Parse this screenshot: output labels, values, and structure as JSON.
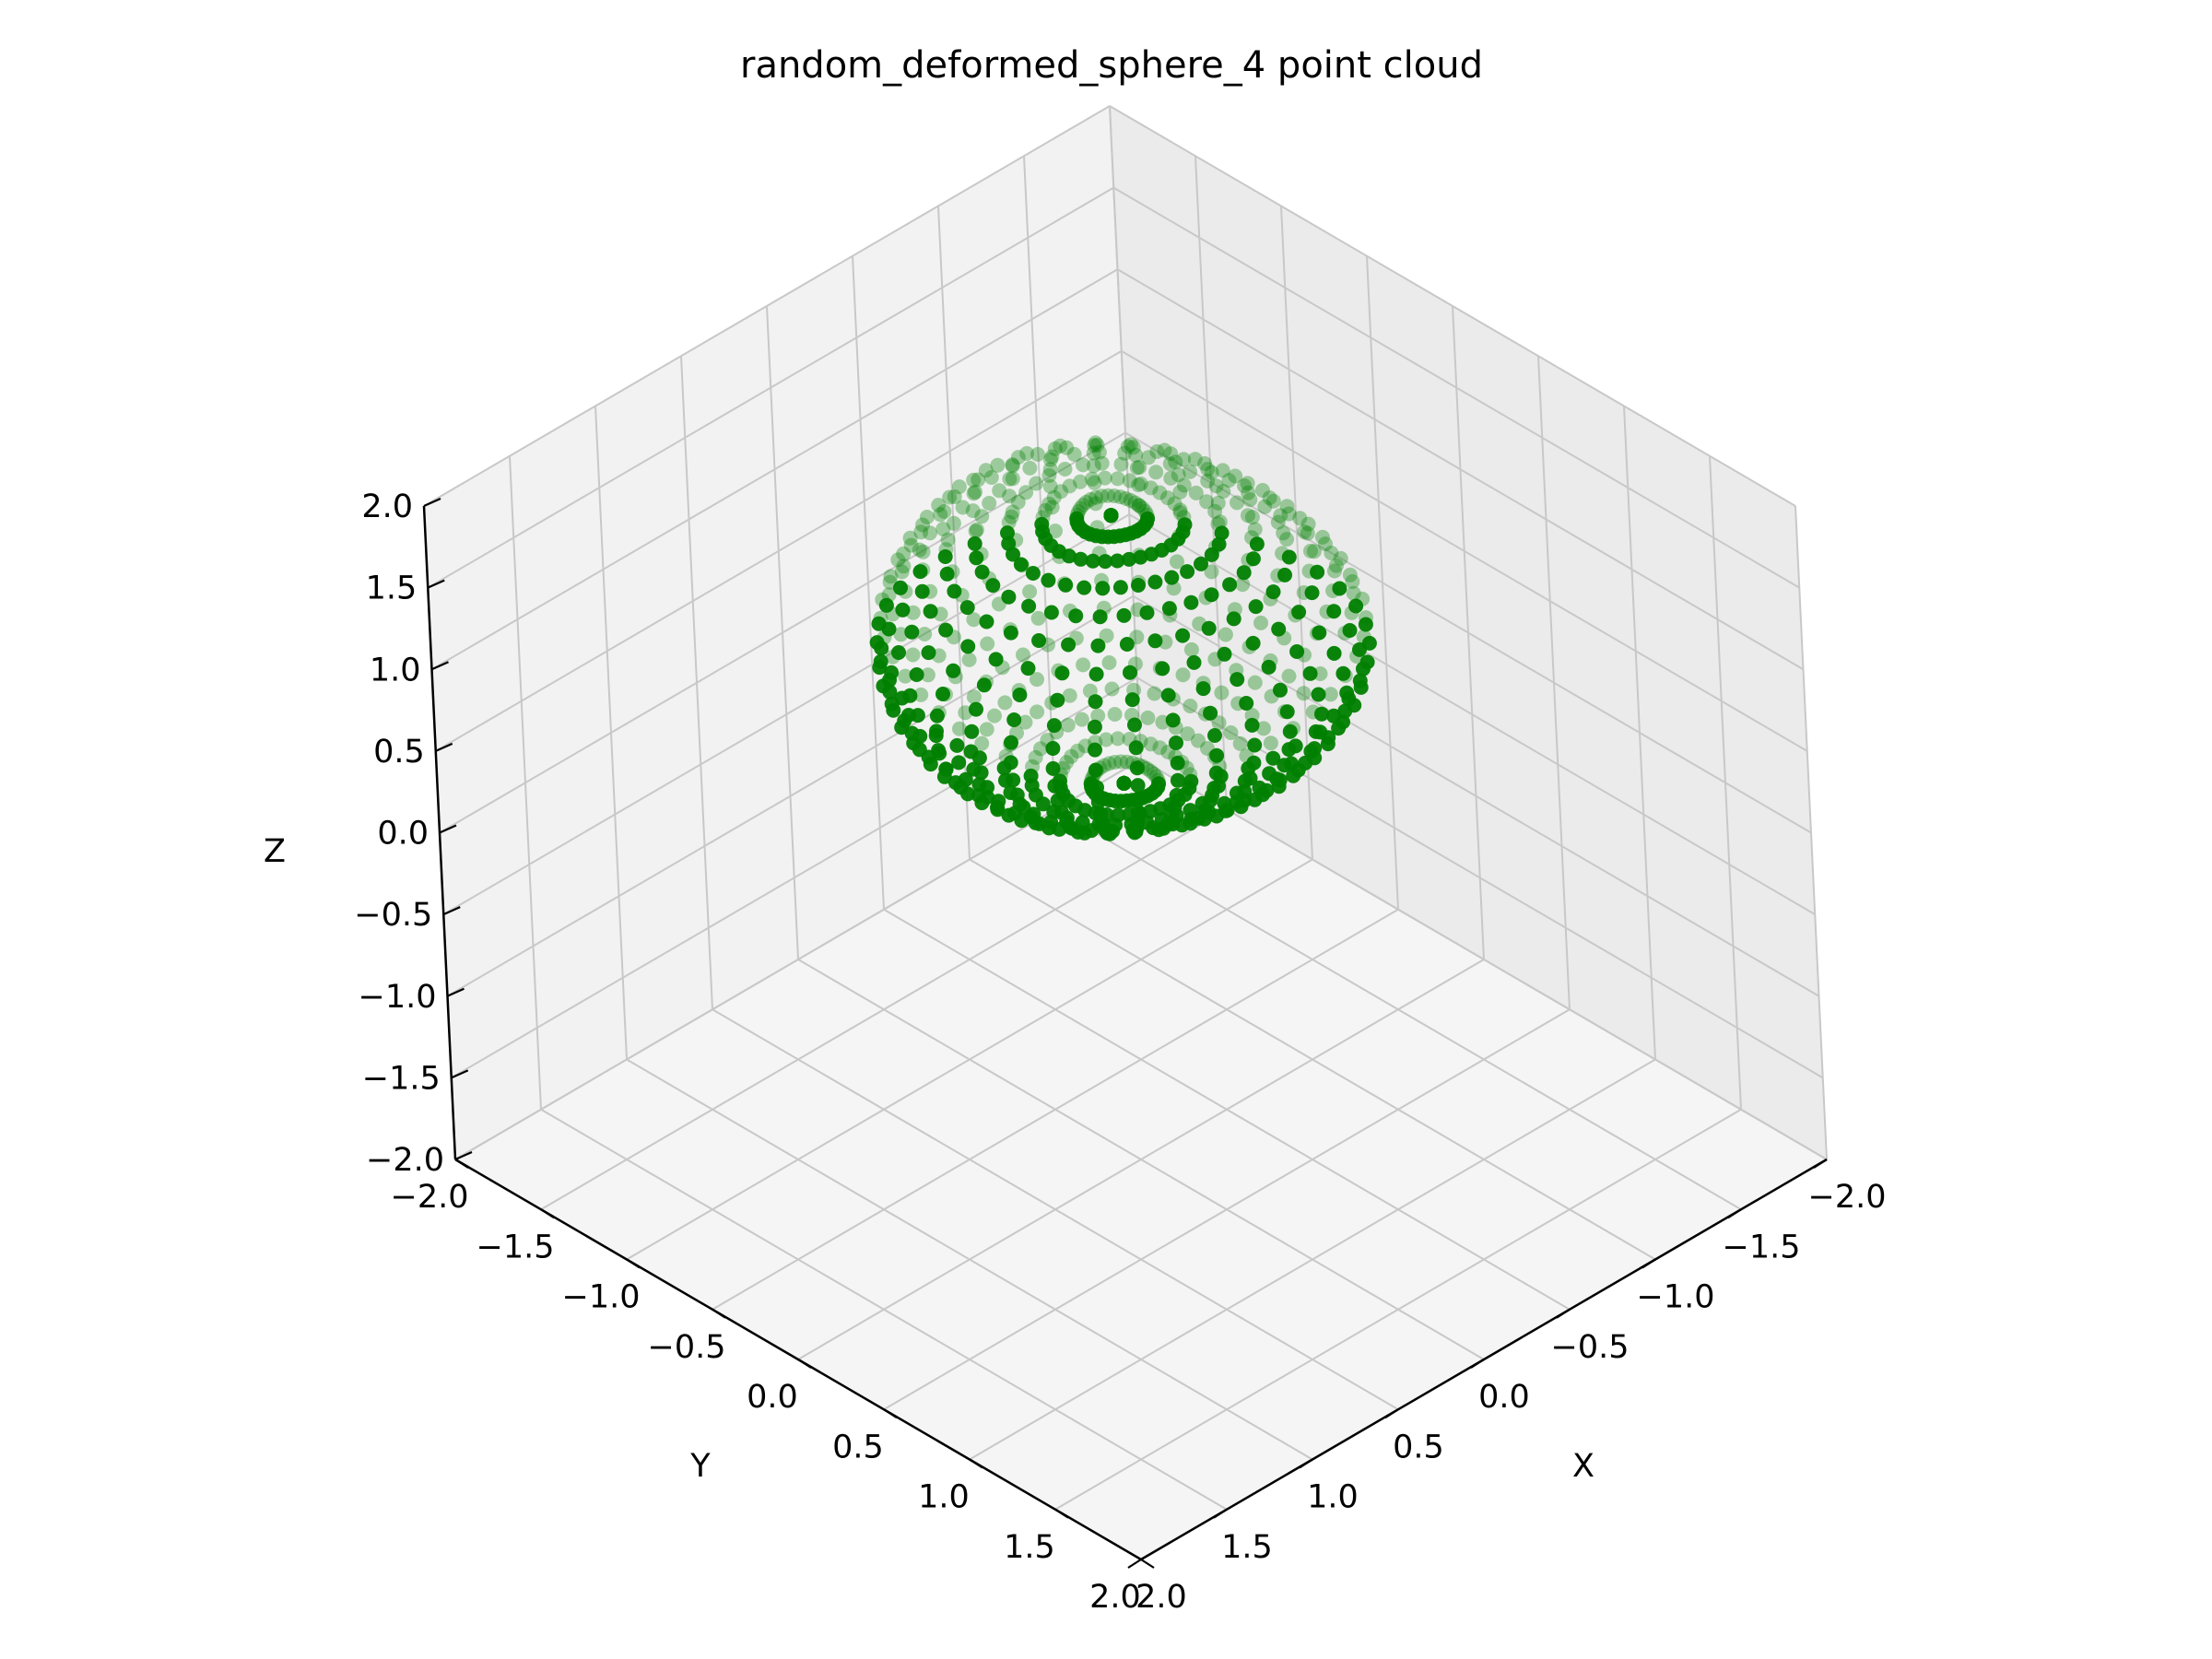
{
  "chart_data": {
    "type": "scatter",
    "projection": "3d",
    "title": "random_deformed_sphere_4 point cloud",
    "xlabel": "X",
    "ylabel": "Y",
    "zlabel": "Z",
    "xlim": [
      -2.0,
      2.0
    ],
    "ylim": [
      -2.0,
      2.0
    ],
    "zlim": [
      -2.0,
      2.0
    ],
    "x_ticks": [
      "−2.0",
      "−1.5",
      "−1.0",
      "−0.5",
      "0.0",
      "0.5",
      "1.0",
      "1.5",
      "2.0"
    ],
    "y_ticks": [
      "−2.0",
      "−1.5",
      "−1.0",
      "−0.5",
      "0.0",
      "0.5",
      "1.0",
      "1.5",
      "2.0"
    ],
    "z_ticks": [
      "−2.0",
      "−1.5",
      "−1.0",
      "−0.5",
      "0.0",
      "0.5",
      "1.0",
      "1.5",
      "2.0"
    ],
    "view": {
      "elevation": 30,
      "azimuth": 45
    },
    "grid": true,
    "marker_color": "#008000",
    "pane_colors": {
      "back": "#f2f2f2",
      "side": "#ebebeb",
      "floor": "#f5f5f5",
      "grid": "#c8c8c8"
    },
    "series": [
      {
        "shape": "deformed-sphere",
        "center": [
          -0.1,
          -0.1,
          1.0
        ],
        "radius": 1.0,
        "latitude_rings": 22,
        "meridians": 36
      }
    ]
  }
}
